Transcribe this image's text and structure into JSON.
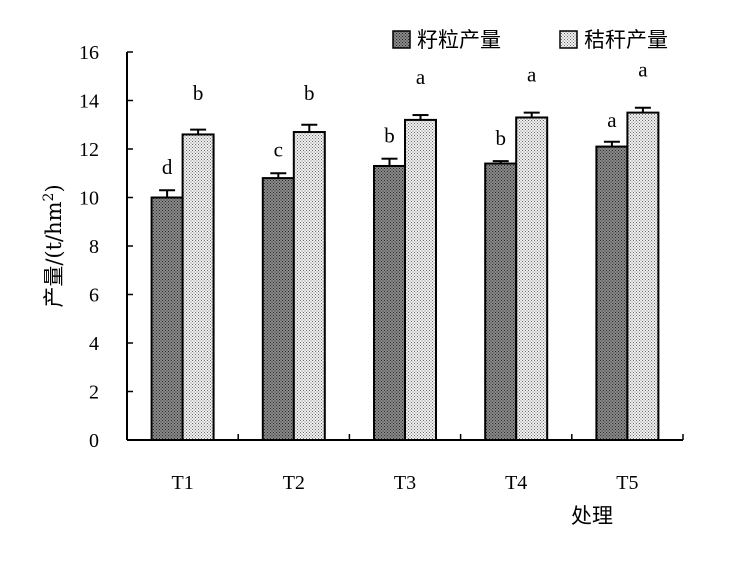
{
  "chart_data": {
    "type": "bar",
    "categories": [
      "T1",
      "T2",
      "T3",
      "T4",
      "T5"
    ],
    "xlabel": "处理",
    "ylabel": "产量/(t/hm",
    "ylabel_sup": "2",
    "ylabel_close": ")",
    "ylim": [
      0,
      16
    ],
    "yticks": [
      "0",
      "2",
      "4",
      "6",
      "8",
      "10",
      "12",
      "14",
      "16"
    ],
    "legend_position": "top-right",
    "grid": false,
    "series": [
      {
        "name": "籽粒产量",
        "values": [
          10.0,
          10.8,
          11.3,
          11.4,
          12.1
        ],
        "errors": [
          0.3,
          0.2,
          0.3,
          0.1,
          0.2
        ],
        "labels": [
          "d",
          "c",
          "b",
          "b",
          "a"
        ],
        "fill": "#7a7a7a"
      },
      {
        "name": "秸秆产量",
        "values": [
          12.6,
          12.7,
          13.2,
          13.3,
          13.5
        ],
        "errors": [
          0.2,
          0.3,
          0.2,
          0.2,
          0.2
        ],
        "labels": [
          "b",
          "b",
          "a",
          "a",
          "a"
        ],
        "fill": "#e2e2e2"
      }
    ]
  }
}
